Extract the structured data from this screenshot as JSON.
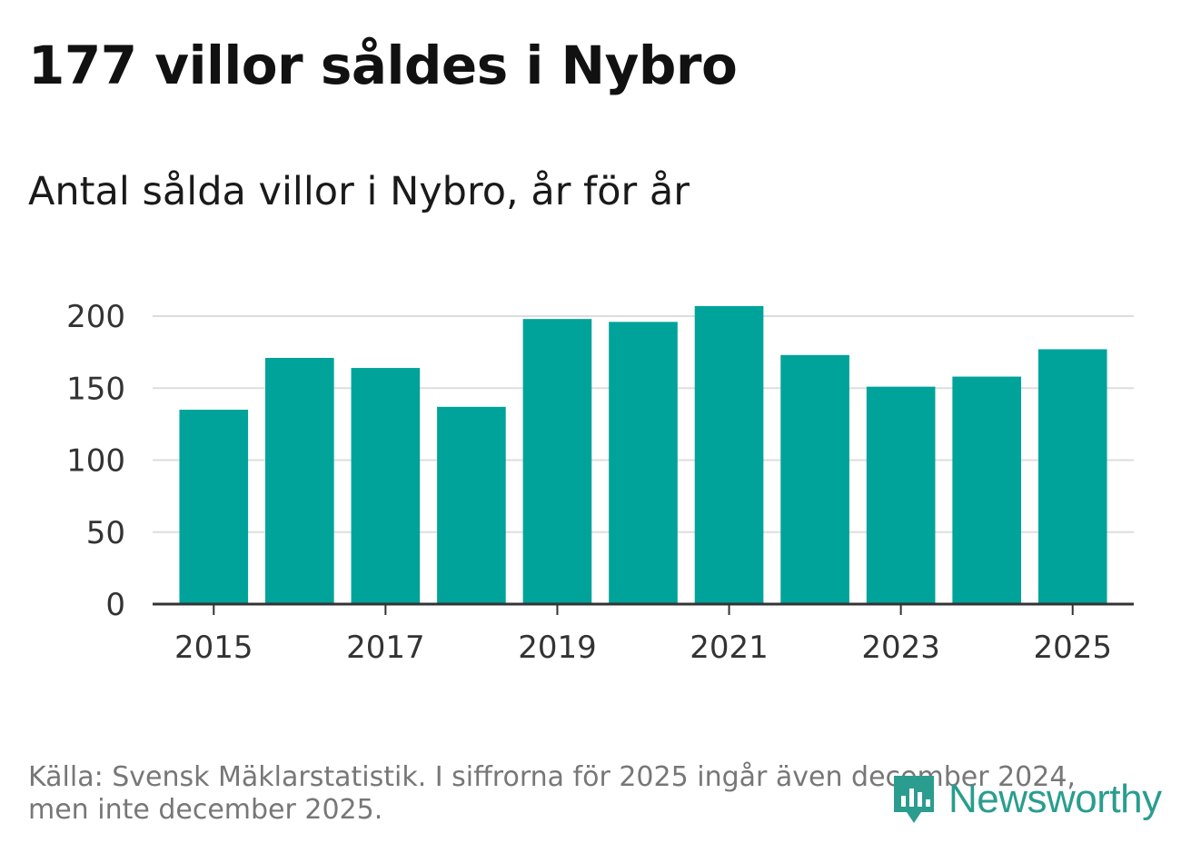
{
  "title": "177 villor såldes i Nybro",
  "subtitle": "Antal sålda villor i Nybro, år för år",
  "source": "Källa: Svensk Mäklarstatistik. I siffrorna för 2025 ingår även december 2024, men inte december 2025.",
  "brand": {
    "name": "Newsworthy",
    "color": "#2a9d8f"
  },
  "colors": {
    "bar": "#00a39a",
    "grid": "#dddddd",
    "axis": "#333333"
  },
  "chart_data": {
    "type": "bar",
    "title": "177 villor såldes i Nybro",
    "subtitle": "Antal sålda villor i Nybro, år för år",
    "xlabel": "",
    "ylabel": "",
    "categories": [
      "2015",
      "2016",
      "2017",
      "2018",
      "2019",
      "2020",
      "2021",
      "2022",
      "2023",
      "2024",
      "2025"
    ],
    "values": [
      135,
      171,
      164,
      137,
      198,
      196,
      207,
      173,
      151,
      158,
      177
    ],
    "ylim": [
      0,
      200
    ],
    "yticks": [
      "0",
      "50",
      "100",
      "150",
      "200"
    ],
    "xticks": [
      "2015",
      "2017",
      "2019",
      "2021",
      "2023",
      "2025"
    ],
    "grid": true,
    "legend": "none"
  }
}
